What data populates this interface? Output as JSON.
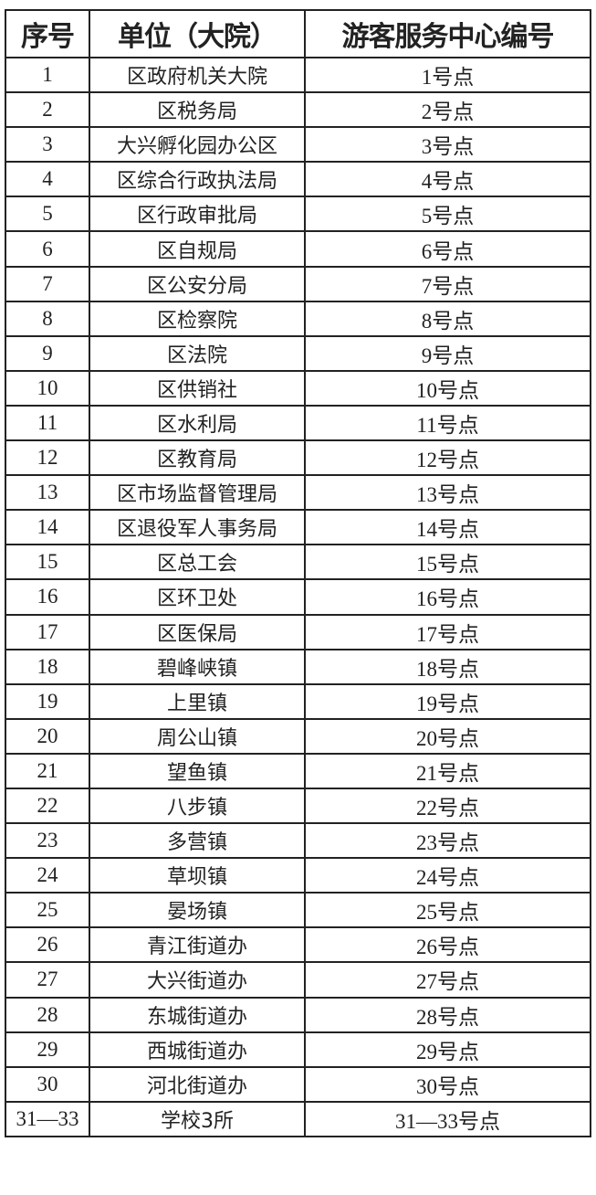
{
  "table": {
    "headers": [
      "序号",
      "单位（大院）",
      "游客服务中心编号"
    ],
    "rows": [
      [
        "1",
        "区政府机关大院",
        "1号点"
      ],
      [
        "2",
        "区税务局",
        "2号点"
      ],
      [
        "3",
        "大兴孵化园办公区",
        "3号点"
      ],
      [
        "4",
        "区综合行政执法局",
        "4号点"
      ],
      [
        "5",
        "区行政审批局",
        "5号点"
      ],
      [
        "6",
        "区自规局",
        "6号点"
      ],
      [
        "7",
        "区公安分局",
        "7号点"
      ],
      [
        "8",
        "区检察院",
        "8号点"
      ],
      [
        "9",
        "区法院",
        "9号点"
      ],
      [
        "10",
        "区供销社",
        "10号点"
      ],
      [
        "11",
        "区水利局",
        "11号点"
      ],
      [
        "12",
        "区教育局",
        "12号点"
      ],
      [
        "13",
        "区市场监督管理局",
        "13号点"
      ],
      [
        "14",
        "区退役军人事务局",
        "14号点"
      ],
      [
        "15",
        "区总工会",
        "15号点"
      ],
      [
        "16",
        "区环卫处",
        "16号点"
      ],
      [
        "17",
        "区医保局",
        "17号点"
      ],
      [
        "18",
        "碧峰峡镇",
        "18号点"
      ],
      [
        "19",
        "上里镇",
        "19号点"
      ],
      [
        "20",
        "周公山镇",
        "20号点"
      ],
      [
        "21",
        "望鱼镇",
        "21号点"
      ],
      [
        "22",
        "八步镇",
        "22号点"
      ],
      [
        "23",
        "多营镇",
        "23号点"
      ],
      [
        "24",
        "草坝镇",
        "24号点"
      ],
      [
        "25",
        "晏场镇",
        "25号点"
      ],
      [
        "26",
        "青江街道办",
        "26号点"
      ],
      [
        "27",
        "大兴街道办",
        "27号点"
      ],
      [
        "28",
        "东城街道办",
        "28号点"
      ],
      [
        "29",
        "西城街道办",
        "29号点"
      ],
      [
        "30",
        "河北街道办",
        "30号点"
      ],
      [
        "31—33",
        "学校3所",
        "31—33号点"
      ]
    ]
  }
}
